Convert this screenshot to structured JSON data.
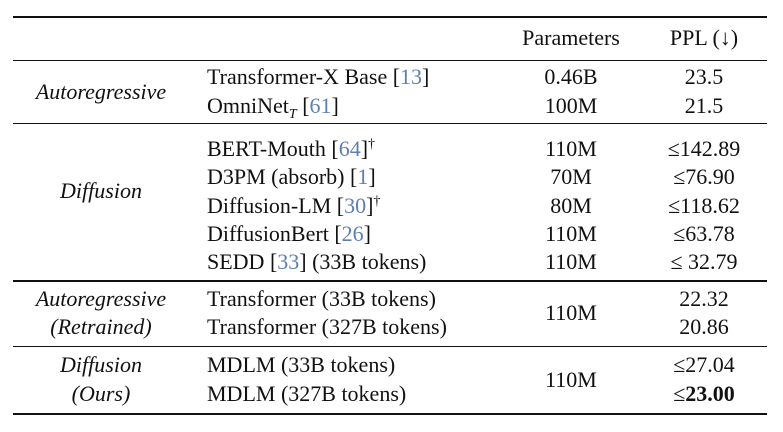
{
  "header": {
    "parameters": "Parameters",
    "ppl": "PPL (↓)"
  },
  "groups": [
    {
      "label_lines": [
        "Autoregressive"
      ],
      "rows": [
        {
          "model": "Transformer-X Base",
          "cite": "13",
          "params": "0.46B",
          "ppl": "23.5"
        },
        {
          "model": "OmniNet",
          "subscript": "T",
          "cite": "61",
          "params": "100M",
          "ppl": "21.5"
        }
      ]
    },
    {
      "label_lines": [
        "Diffusion"
      ],
      "rows": [
        {
          "model": "BERT-Mouth",
          "cite": "64",
          "dagger": "†",
          "params": "110M",
          "ppl": "≤142.89"
        },
        {
          "model": "D3PM (absorb)",
          "cite": "1",
          "params": "70M",
          "ppl": "≤76.90"
        },
        {
          "model": "Diffusion-LM",
          "cite": "30",
          "dagger": "†",
          "params": "80M",
          "ppl": "≤118.62"
        },
        {
          "model": "DiffusionBert",
          "cite": "26",
          "params": "110M",
          "ppl": "≤63.78"
        },
        {
          "model": "SEDD",
          "cite": "33",
          "suffix": "(33B tokens)",
          "params": "110M",
          "ppl": "≤ 32.79"
        }
      ]
    },
    {
      "label_lines": [
        "Autoregressive",
        "(Retrained)"
      ],
      "shared_params": "110M",
      "rows": [
        {
          "model": "Transformer (33B tokens)",
          "ppl": "22.32"
        },
        {
          "model": "Transformer (327B tokens)",
          "ppl": "20.86"
        }
      ]
    },
    {
      "label_lines": [
        "Diffusion",
        "(Ours)"
      ],
      "shared_params": "110M",
      "rows": [
        {
          "model": "MDLM (33B tokens)",
          "ppl": "≤27.04"
        },
        {
          "model": "MDLM (327B tokens)",
          "ppl_prefix": "≤",
          "ppl_bold": "23.00"
        }
      ]
    }
  ],
  "colors": {
    "citation": "#5b7fb5",
    "text": "#111111"
  }
}
